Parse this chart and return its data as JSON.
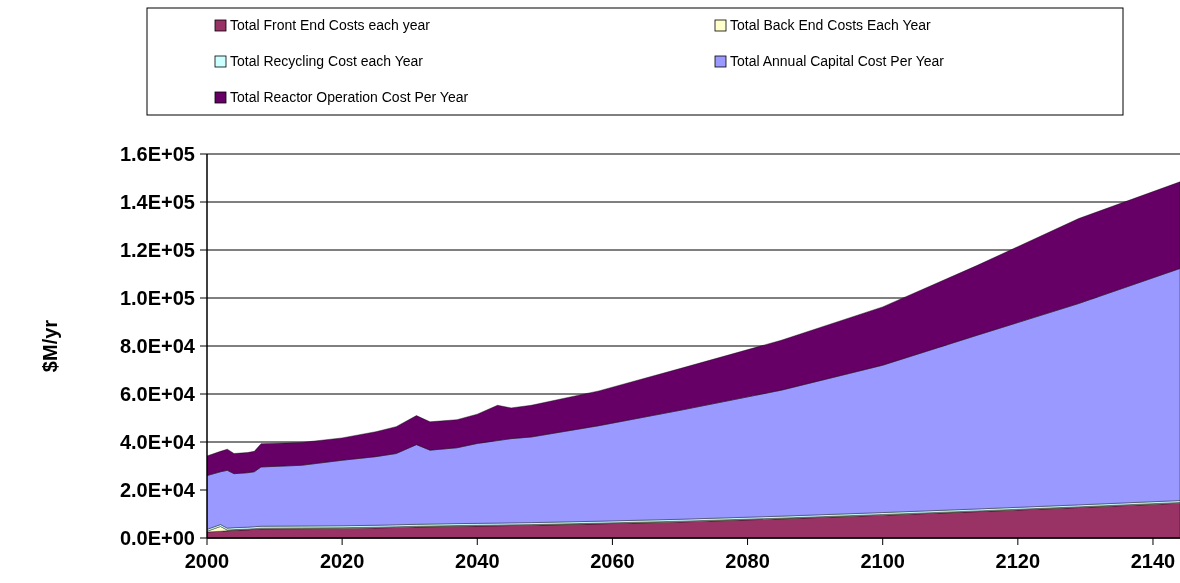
{
  "chart_data": {
    "type": "area",
    "stacked": true,
    "ylabel": "$M/yr",
    "x": [
      2000,
      2002,
      2003,
      2004,
      2006,
      2007,
      2008,
      2014,
      2020,
      2025,
      2028,
      2031,
      2033,
      2037,
      2040,
      2043,
      2045,
      2048,
      2058,
      2070,
      2085,
      2100,
      2114,
      2129,
      2144
    ],
    "series": [
      {
        "name": "Total Front End Costs each year",
        "color": "#993366",
        "values": [
          2500,
          2800,
          3000,
          3200,
          3400,
          3600,
          3800,
          3900,
          4000,
          4200,
          4400,
          4600,
          4700,
          4900,
          5000,
          5100,
          5200,
          5300,
          5900,
          6700,
          8000,
          9500,
          11000,
          12700,
          14500
        ]
      },
      {
        "name": "Total Back End Costs Each Year",
        "color": "#ffffcc",
        "values": [
          300,
          2000,
          300,
          300,
          300,
          300,
          300,
          300,
          300,
          300,
          300,
          300,
          300,
          300,
          300,
          300,
          300,
          300,
          300,
          300,
          300,
          300,
          300,
          300,
          300
        ]
      },
      {
        "name": "Total Recycling Cost each Year",
        "color": "#ccffff",
        "values": [
          800,
          800,
          800,
          800,
          800,
          800,
          800,
          800,
          800,
          800,
          800,
          800,
          800,
          800,
          800,
          800,
          800,
          800,
          800,
          800,
          800,
          800,
          800,
          800,
          800
        ]
      },
      {
        "name": "Total Annual Capital Cost Per Year",
        "color": "#9999ff",
        "values": [
          22400,
          22000,
          24100,
          22500,
          22700,
          22900,
          24700,
          25300,
          27300,
          28600,
          29700,
          33200,
          30800,
          31600,
          33300,
          34400,
          35100,
          35700,
          39800,
          45400,
          52500,
          61400,
          72400,
          83900,
          96700
        ]
      },
      {
        "name": "Total Reactor Operation Cost Per Year",
        "color": "#660066",
        "values": [
          8200,
          8500,
          8800,
          8400,
          8400,
          8500,
          9700,
          9500,
          9300,
          10400,
          11200,
          12100,
          11800,
          11700,
          12200,
          14700,
          12800,
          13200,
          14500,
          17400,
          20800,
          24300,
          29100,
          35400,
          36100
        ]
      }
    ],
    "xlim": [
      2000,
      2144
    ],
    "xticks": [
      2000,
      2020,
      2040,
      2060,
      2080,
      2100,
      2120,
      2140
    ],
    "ylim": [
      0,
      160000
    ],
    "yticks": [
      {
        "value": 0,
        "label": "0.0E+00"
      },
      {
        "value": 20000,
        "label": "2.0E+04"
      },
      {
        "value": 40000,
        "label": "4.0E+04"
      },
      {
        "value": 60000,
        "label": "6.0E+04"
      },
      {
        "value": 80000,
        "label": "8.0E+04"
      },
      {
        "value": 100000,
        "label": "1.0E+05"
      },
      {
        "value": 120000,
        "label": "1.2E+05"
      },
      {
        "value": 140000,
        "label": "1.4E+05"
      },
      {
        "value": 160000,
        "label": "1.6E+05"
      }
    ],
    "grid": "y",
    "legend": "top"
  }
}
